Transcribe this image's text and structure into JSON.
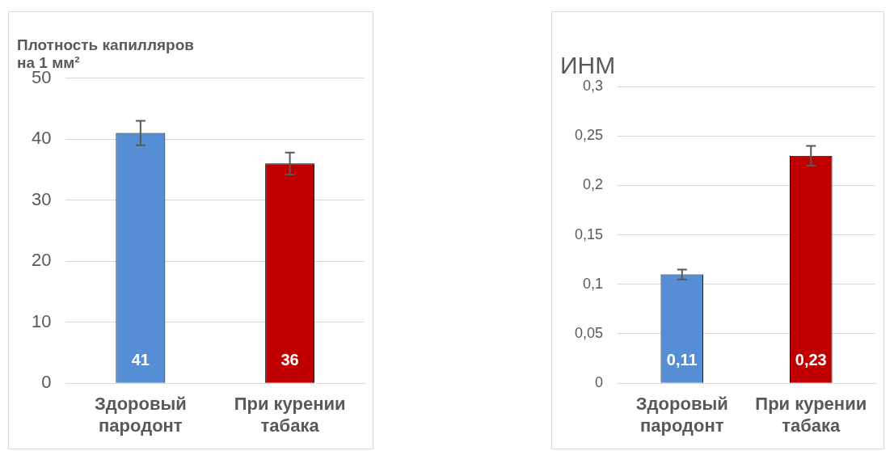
{
  "chart_data": [
    {
      "type": "bar",
      "title": "Плотность капилляров на 1 мм²",
      "categories": [
        "Здоровый пародонт",
        "При курении табака"
      ],
      "values": [
        41,
        36
      ],
      "colors": [
        "#558ed5",
        "#c00000"
      ],
      "errors": [
        2,
        1.8
      ],
      "value_labels": [
        "41",
        "36"
      ],
      "ylim": [
        0,
        50
      ],
      "yticks": [
        0,
        10,
        20,
        30,
        40,
        50
      ],
      "grid": "y",
      "legend": false
    },
    {
      "type": "bar",
      "title": "ИНМ",
      "categories": [
        "Здоровый пародонт",
        "При курении табака"
      ],
      "values": [
        0.11,
        0.23
      ],
      "colors": [
        "#558ed5",
        "#c00000"
      ],
      "errors": [
        0.005,
        0.01
      ],
      "value_labels": [
        "0,11",
        "0,23"
      ],
      "ylim": [
        0,
        0.3
      ],
      "yticks": [
        {
          "value": 0,
          "label": "0"
        },
        {
          "value": 0.05,
          "label": "0,05"
        },
        {
          "value": 0.1,
          "label": "0,1"
        },
        {
          "value": 0.15,
          "label": "0,15"
        },
        {
          "value": 0.2,
          "label": "0,2"
        },
        {
          "value": 0.25,
          "label": "0,25"
        },
        {
          "value": 0.3,
          "label": "0,3"
        }
      ],
      "grid": "y",
      "legend": false
    }
  ]
}
